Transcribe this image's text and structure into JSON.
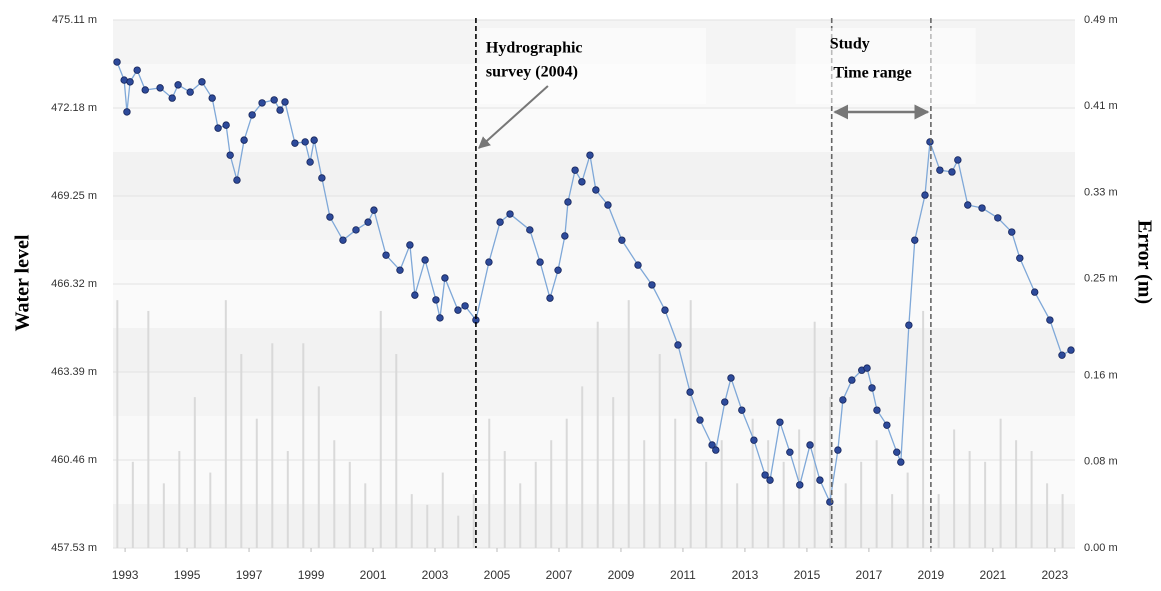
{
  "chart_data": {
    "type": "line",
    "y_label": "Water level",
    "y2_label": "Error (m)",
    "xlim": [
      1992.61,
      2023.65
    ],
    "xticks": [
      1993,
      1995,
      1997,
      1999,
      2001,
      2003,
      2005,
      2007,
      2009,
      2011,
      2013,
      2015,
      2017,
      2019,
      2021,
      2023
    ],
    "ylim": [
      457.53,
      475.11
    ],
    "yticks": [
      {
        "value": 457.53,
        "label": "457.53 m"
      },
      {
        "value": 460.46,
        "label": "460.46 m"
      },
      {
        "value": 463.39,
        "label": "463.39 m"
      },
      {
        "value": 466.32,
        "label": "466.32 m"
      },
      {
        "value": 469.25,
        "label": "469.25 m"
      },
      {
        "value": 472.18,
        "label": "472.18 m"
      },
      {
        "value": 475.11,
        "label": "475.11 m"
      }
    ],
    "y2lim": [
      0,
      0.49
    ],
    "y2ticks": [
      {
        "value": 0,
        "label": "0.00 m"
      },
      {
        "value": 0.08,
        "label": "0.08 m"
      },
      {
        "value": 0.16,
        "label": "0.16 m"
      },
      {
        "value": 0.25,
        "label": "0.25 m"
      },
      {
        "value": 0.33,
        "label": "0.33 m"
      },
      {
        "value": 0.41,
        "label": "0.41 m"
      },
      {
        "value": 0.49,
        "label": "0.49 m"
      }
    ],
    "grid": true,
    "series": [
      {
        "type": "bar",
        "axis": "y2",
        "color": "#d9d9d9",
        "x": [
          1992.75,
          1993.25,
          1993.75,
          1994.25,
          1994.75,
          1995.25,
          1995.75,
          1996.25,
          1996.75,
          1997.25,
          1997.75,
          1998.25,
          1998.75,
          1999.25,
          1999.75,
          2000.25,
          2000.75,
          2001.25,
          2001.75,
          2002.25,
          2002.75,
          2003.25,
          2003.75,
          2004.25,
          2004.75,
          2005.25,
          2005.75,
          2006.25,
          2006.75,
          2007.25,
          2007.75,
          2008.25,
          2008.75,
          2009.25,
          2009.75,
          2010.25,
          2010.75,
          2011.25,
          2011.75,
          2012.25,
          2012.75,
          2013.25,
          2013.75,
          2014.25,
          2014.75,
          2015.25,
          2015.75,
          2016.25,
          2016.75,
          2017.25,
          2017.75,
          2018.25,
          2018.75,
          2019.25,
          2019.75,
          2020.25,
          2020.75,
          2021.25,
          2021.75,
          2022.25,
          2022.75,
          2023.25
        ],
        "values": [
          0.23,
          0.08,
          0.22,
          0.06,
          0.09,
          0.14,
          0.07,
          0.23,
          0.18,
          0.12,
          0.19,
          0.09,
          0.19,
          0.15,
          0.1,
          0.08,
          0.06,
          0.22,
          0.18,
          0.05,
          0.04,
          0.07,
          0.03,
          0.05,
          0.12,
          0.09,
          0.06,
          0.08,
          0.1,
          0.12,
          0.15,
          0.21,
          0.14,
          0.23,
          0.1,
          0.18,
          0.12,
          0.23,
          0.08,
          0.1,
          0.06,
          0.12,
          0.1,
          0.08,
          0.11,
          0.21,
          0.14,
          0.06,
          0.08,
          0.1,
          0.05,
          0.07,
          0.22,
          0.05,
          0.11,
          0.09,
          0.08,
          0.12,
          0.1,
          0.09,
          0.06,
          0.05
        ]
      },
      {
        "type": "line",
        "color": "#7fa8d8",
        "marker_color": "#2d4a9a",
        "x": [
          1992.74,
          1992.97,
          1993.06,
          1993.16,
          1993.39,
          1993.65,
          1994.13,
          1994.52,
          1994.71,
          1995.1,
          1995.48,
          1995.81,
          1996.0,
          1996.26,
          1996.39,
          1996.61,
          1996.84,
          1997.1,
          1997.42,
          1997.81,
          1998.0,
          1998.16,
          1998.48,
          1998.81,
          1998.97,
          1999.1,
          1999.35,
          1999.61,
          2000.03,
          2000.45,
          2000.84,
          2001.03,
          2001.42,
          2001.87,
          2002.19,
          2002.35,
          2002.68,
          2003.03,
          2003.16,
          2003.32,
          2003.74,
          2003.97,
          2004.32,
          2004.74,
          2005.1,
          2005.42,
          2006.06,
          2006.39,
          2006.71,
          2006.97,
          2007.19,
          2007.29,
          2007.52,
          2007.74,
          2008.0,
          2008.19,
          2008.58,
          2009.03,
          2009.55,
          2010.0,
          2010.42,
          2010.84,
          2011.23,
          2011.55,
          2011.94,
          2012.06,
          2012.35,
          2012.55,
          2012.9,
          2013.29,
          2013.65,
          2013.81,
          2014.13,
          2014.45,
          2014.77,
          2015.1,
          2015.42,
          2015.74,
          2016.0,
          2016.16,
          2016.45,
          2016.77,
          2016.94,
          2017.1,
          2017.26,
          2017.58,
          2017.9,
          2018.03,
          2018.29,
          2018.48,
          2018.81,
          2018.97,
          2019.29,
          2019.68,
          2019.87,
          2020.19,
          2020.65,
          2021.16,
          2021.61,
          2021.87,
          2022.35,
          2022.84,
          2023.23,
          2023.52
        ],
        "values": [
          473.71,
          473.11,
          472.05,
          473.05,
          473.44,
          472.78,
          472.85,
          472.51,
          472.95,
          472.71,
          473.05,
          472.51,
          471.51,
          471.61,
          470.61,
          469.78,
          471.11,
          471.95,
          472.35,
          472.45,
          472.11,
          472.38,
          471.01,
          471.05,
          470.38,
          471.11,
          469.85,
          468.55,
          467.78,
          468.12,
          468.38,
          468.78,
          467.28,
          466.78,
          467.62,
          465.95,
          467.12,
          465.79,
          465.19,
          466.52,
          465.45,
          465.59,
          465.12,
          467.05,
          468.38,
          468.65,
          468.12,
          467.05,
          465.85,
          466.78,
          467.92,
          469.05,
          470.11,
          469.72,
          470.61,
          469.45,
          468.95,
          467.78,
          466.95,
          466.29,
          465.45,
          464.29,
          462.72,
          461.79,
          460.96,
          460.79,
          462.39,
          463.19,
          462.12,
          461.12,
          459.96,
          459.79,
          461.72,
          460.72,
          459.63,
          460.96,
          459.79,
          459.06,
          460.79,
          462.46,
          463.12,
          463.45,
          463.52,
          462.86,
          462.12,
          461.62,
          460.72,
          460.39,
          464.95,
          467.78,
          469.28,
          471.05,
          470.11,
          470.05,
          470.45,
          468.95,
          468.85,
          468.52,
          468.05,
          467.18,
          466.05,
          465.12,
          463.95,
          464.12
        ]
      }
    ],
    "vlines": [
      {
        "x": 2004.32,
        "color": "#000000"
      },
      {
        "x": 2015.8,
        "color": "#666666"
      },
      {
        "x": 2019.0,
        "color": "#666666"
      }
    ],
    "annotations": [
      {
        "lines": [
          "Hydrographic",
          "survey (2004)"
        ]
      },
      {
        "lines": [
          "Study",
          " Time range"
        ]
      }
    ]
  }
}
